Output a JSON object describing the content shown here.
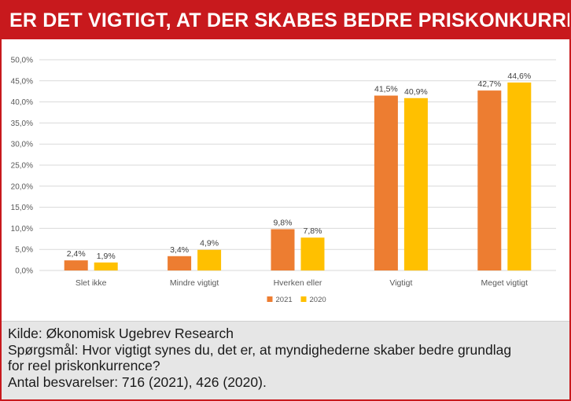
{
  "header": {
    "title": "ER DET VIGTIGT, AT DER SKABES BEDRE PRISKONKURRENCE?"
  },
  "colors": {
    "frame": "#c8191d",
    "footer_bg": "#e6e6e6",
    "grid": "#d9d9d9"
  },
  "chart_data": {
    "type": "bar",
    "title": "",
    "xlabel": "",
    "ylabel": "",
    "categories": [
      "Slet ikke",
      "Mindre vigtigt",
      "Hverken eller",
      "Vigtigt",
      "Meget vigtigt"
    ],
    "series": [
      {
        "name": "2021",
        "color": "#ed7d31",
        "values": [
          2.4,
          3.4,
          9.8,
          41.5,
          42.7
        ],
        "labels": [
          "2,4%",
          "3,4%",
          "9,8%",
          "41,5%",
          "42,7%"
        ]
      },
      {
        "name": "2020",
        "color": "#ffc000",
        "values": [
          1.9,
          4.9,
          7.8,
          40.9,
          44.6
        ],
        "labels": [
          "1,9%",
          "4,9%",
          "7,8%",
          "40,9%",
          "44,6%"
        ]
      }
    ],
    "ylim": [
      0,
      50
    ],
    "yticks": [
      0,
      5,
      10,
      15,
      20,
      25,
      30,
      35,
      40,
      45,
      50
    ],
    "ytick_labels": [
      "0,0%",
      "5,0%",
      "10,0%",
      "15,0%",
      "20,0%",
      "25,0%",
      "30,0%",
      "35,0%",
      "40,0%",
      "45,0%",
      "50,0%"
    ],
    "grid": true,
    "legend": "bottom-center"
  },
  "footer": {
    "source": "Kilde: Økonomisk Ugebrev Research",
    "question_line1": "Spørgsmål: Hvor vigtigt synes du, det er, at myndighederne skaber bedre grundlag",
    "question_line2": "for reel priskonkurrence?",
    "responses": "Antal besvarelser: 716 (2021), 426 (2020)."
  }
}
